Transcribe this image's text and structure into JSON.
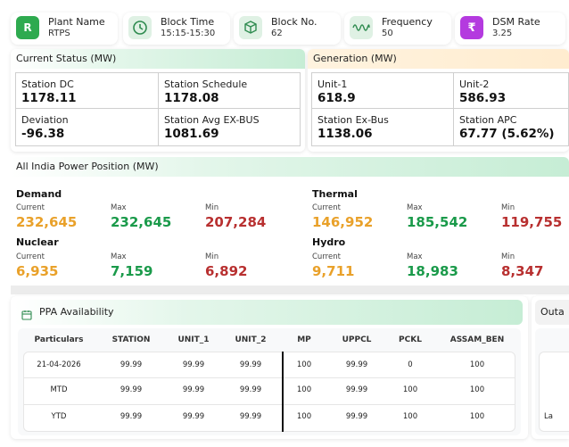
{
  "top_cards": [
    {
      "label": "Plant Name",
      "value": "RTPS",
      "icon": "letter-r-icon",
      "glyph": "R",
      "color": "#2eaa4f"
    },
    {
      "label": "Block Time",
      "value": "15:15-15:30",
      "icon": "clock-icon",
      "glyph": "",
      "color": "#dff1e4"
    },
    {
      "label": "Block No.",
      "value": "62",
      "icon": "cube-icon",
      "glyph": "",
      "color": "#dff1e4"
    },
    {
      "label": "Frequency",
      "value": "50",
      "icon": "frequency-wave-icon",
      "glyph": "",
      "color": "#dff1e4"
    },
    {
      "label": "DSM Rate",
      "value": "3.25",
      "icon": "rupee-icon",
      "glyph": "₹",
      "color": "#b43adf"
    }
  ],
  "current_status": {
    "title": "Current Status (MW)",
    "cells": [
      {
        "label": "Station DC",
        "value": "1178.11"
      },
      {
        "label": "Station Schedule",
        "value": "1178.08"
      },
      {
        "label": "Deviation",
        "value": "-96.38"
      },
      {
        "label": "Station Avg EX-BUS",
        "value": "1081.69"
      }
    ]
  },
  "generation": {
    "title": "Generation (MW)",
    "cells": [
      {
        "label": "Unit-1",
        "value": "618.9"
      },
      {
        "label": "Unit-2",
        "value": "586.93"
      },
      {
        "label": "Station Ex-Bus",
        "value": "1138.06"
      },
      {
        "label": "Station APC",
        "value": "67.77 (5.62%)"
      }
    ]
  },
  "power_position": {
    "title": "All India Power Position (MW)",
    "current_label": "Current",
    "max_label": "Max",
    "min_label": "Min",
    "groups": [
      {
        "name": "Demand",
        "current": "232,645",
        "max": "232,645",
        "min": "207,284"
      },
      {
        "name": "Thermal",
        "current": "146,952",
        "max": "185,542",
        "min": "119,755"
      },
      {
        "name": "Nuclear",
        "current": "6,935",
        "max": "7,159",
        "min": "6,892"
      },
      {
        "name": "Hydro",
        "current": "9,711",
        "max": "18,983",
        "min": "8,347"
      }
    ]
  },
  "ppa": {
    "title": "PPA Availability",
    "columns": [
      "Particulars",
      "STATION",
      "UNIT_1",
      "UNIT_2",
      "MP",
      "UPPCL",
      "PCKL",
      "ASSAM_BEN"
    ],
    "rows": [
      [
        "21-04-2026",
        "99.99",
        "99.99",
        "99.99",
        "100",
        "99.99",
        "0",
        "100"
      ],
      [
        "MTD",
        "99.99",
        "99.99",
        "99.99",
        "100",
        "99.99",
        "100",
        "100"
      ],
      [
        "YTD",
        "99.99",
        "99.99",
        "99.99",
        "100",
        "99.99",
        "100",
        "100"
      ]
    ]
  },
  "outage": {
    "title": "Outa",
    "row_label": "La"
  }
}
